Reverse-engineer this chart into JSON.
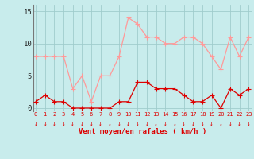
{
  "x": [
    0,
    1,
    2,
    3,
    4,
    5,
    6,
    7,
    8,
    9,
    10,
    11,
    12,
    13,
    14,
    15,
    16,
    17,
    18,
    19,
    20,
    21,
    22,
    23
  ],
  "vent_moyen": [
    1,
    2,
    1,
    1,
    0,
    0,
    0,
    0,
    0,
    1,
    1,
    4,
    4,
    3,
    3,
    3,
    2,
    1,
    1,
    2,
    0,
    3,
    2,
    3
  ],
  "rafales": [
    8,
    8,
    8,
    8,
    3,
    5,
    1,
    5,
    5,
    8,
    14,
    13,
    11,
    11,
    10,
    10,
    11,
    11,
    10,
    8,
    6,
    11,
    8,
    11
  ],
  "color_moyen": "#dd0000",
  "color_rafales": "#ff9999",
  "background": "#c8ecec",
  "grid_color": "#a0cccc",
  "xlabel": "Vent moyen/en rafales ( km/h )",
  "xlabel_color": "#dd0000",
  "ytick_labels": [
    "0",
    "5",
    "10",
    "15"
  ],
  "ytick_vals": [
    0,
    5,
    10,
    15
  ],
  "ylim": [
    -0.5,
    16
  ],
  "xlim": [
    -0.3,
    23.3
  ],
  "arrow_color": "#dd0000",
  "tick_color": "#dd0000",
  "marker": "+",
  "linewidth": 0.9,
  "markersize": 4
}
